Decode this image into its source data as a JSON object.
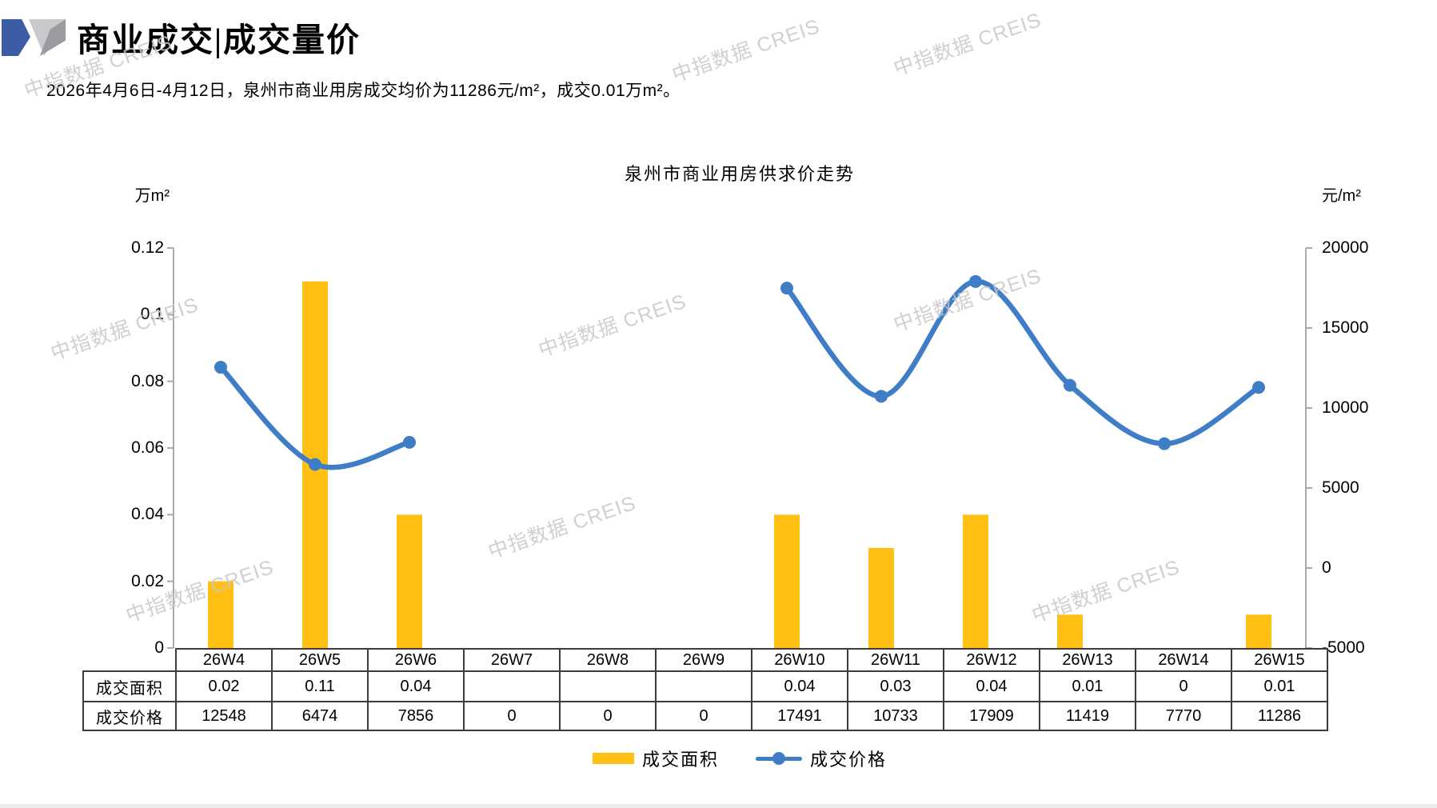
{
  "page": {
    "header": {
      "title": "商业成交|成交量价"
    },
    "subtitle": "2026年4月6日-4月12日，泉州市商业用房成交均价为11286元/m²，成交0.01万m²。",
    "watermark": "中指数据 CREIS"
  },
  "chart_data": {
    "type": "bar+line combo",
    "title": "泉州市商业用房供求价走势",
    "categories": [
      "26W4",
      "26W5",
      "26W6",
      "26W7",
      "26W8",
      "26W9",
      "26W10",
      "26W11",
      "26W12",
      "26W13",
      "26W14",
      "26W15"
    ],
    "series": [
      {
        "name": "成交面积",
        "type": "bar",
        "axis": "left",
        "color": "#FFC013",
        "values": [
          0.02,
          0.11,
          0.04,
          null,
          null,
          null,
          0.04,
          0.03,
          0.04,
          0.01,
          0,
          0.01
        ]
      },
      {
        "name": "成交价格",
        "type": "line",
        "axis": "right",
        "color": "#3F7EC6",
        "values": [
          12548,
          6474,
          7856,
          0,
          0,
          0,
          17491,
          10733,
          17909,
          11419,
          7770,
          11286
        ]
      }
    ],
    "left_axis": {
      "unit": "万m²",
      "min": 0,
      "max": 0.12,
      "ticks": [
        0,
        0.02,
        0.04,
        0.06,
        0.08,
        0.1,
        0.12
      ],
      "tick_labels": [
        "0",
        "0.02",
        "0.04",
        "0.06",
        "0.08",
        "0.1",
        "0.12"
      ]
    },
    "right_axis": {
      "unit": "元/m²",
      "min": -5000,
      "max": 20000,
      "ticks": [
        -5000,
        0,
        5000,
        10000,
        15000,
        20000
      ],
      "tick_labels": [
        "-5000",
        "0",
        "5000",
        "10000",
        "15000",
        "20000"
      ]
    },
    "table": {
      "row_headers": [
        "成交面积",
        "成交价格"
      ],
      "rows": [
        [
          "0.02",
          "0.11",
          "0.04",
          "",
          "",
          "",
          "0.04",
          "0.03",
          "0.04",
          "0.01",
          "0",
          "0.01"
        ],
        [
          "12548",
          "6474",
          "7856",
          "0",
          "0",
          "0",
          "17491",
          "10733",
          "17909",
          "11419",
          "7770",
          "11286"
        ]
      ]
    },
    "legend": [
      "成交面积",
      "成交价格"
    ],
    "layout_hints": {
      "grid": false,
      "legend_position": "bottom",
      "line_smooth": true,
      "line_gap_weeks": [
        "26W7",
        "26W8",
        "26W9"
      ]
    }
  }
}
